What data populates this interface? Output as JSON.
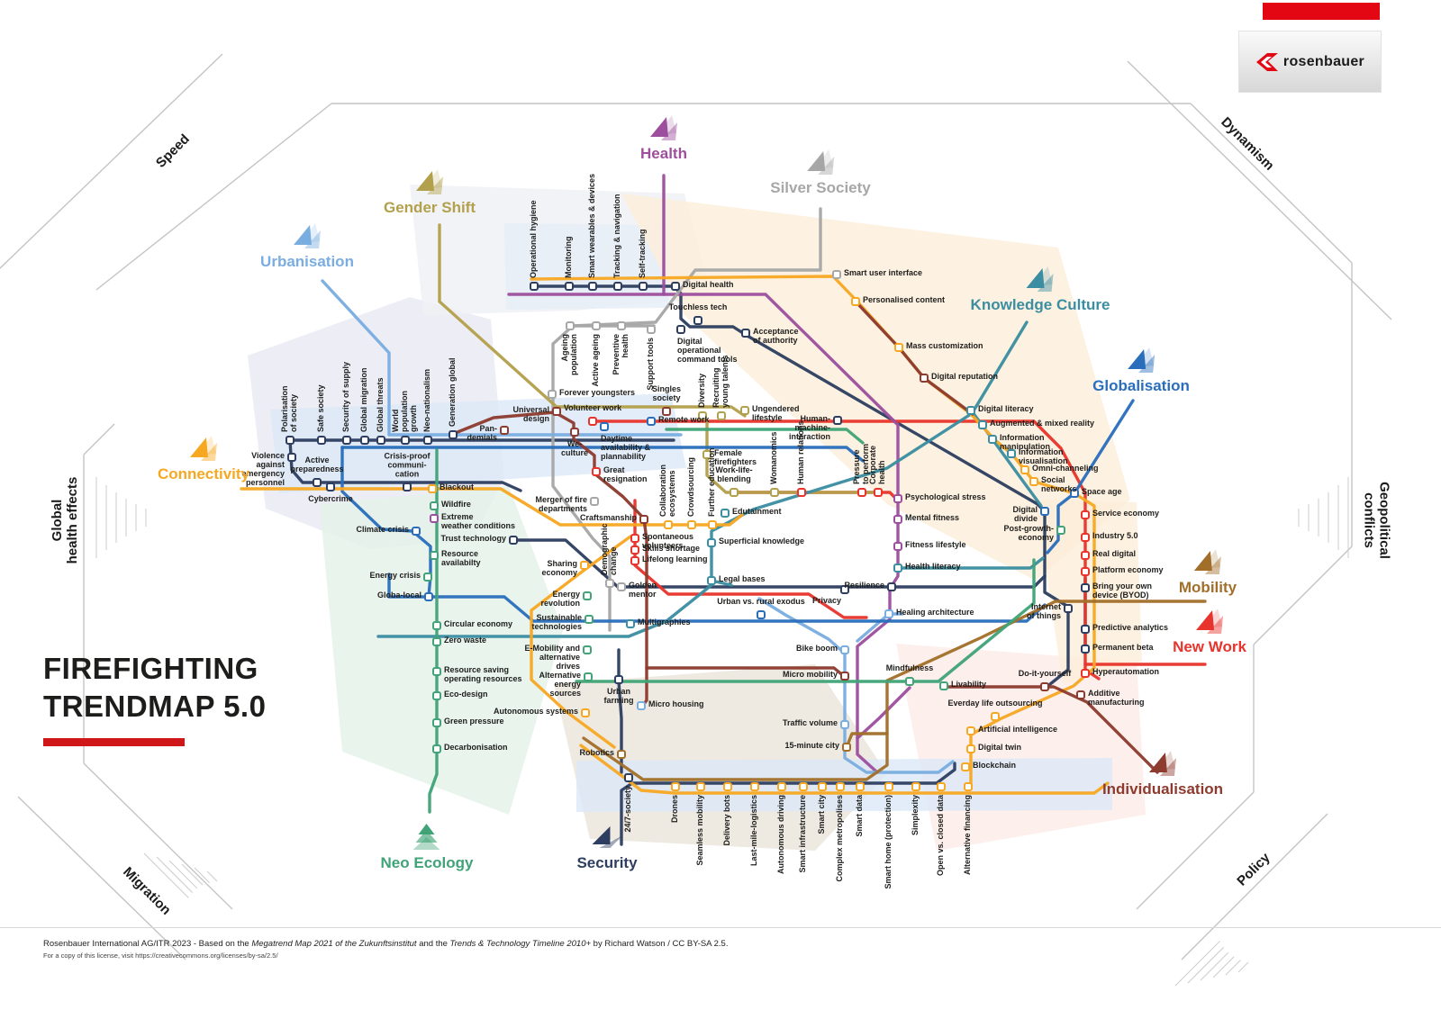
{
  "brand": {
    "logo_text": "rosenbauer",
    "bar_color": "#e30613"
  },
  "title": {
    "line1": "FIREFIGHTING",
    "line2": "TRENDMAP 5.0",
    "accent_color": "#cf1719"
  },
  "footer": {
    "p1": "Rosenbauer International AG/ITR 2023 - Based on the ",
    "p2": "Megatrend Map 2021 of the Zukunftsinstitut",
    "p3": " and the ",
    "p4": "Trends & Technology Timeline 2010+",
    "p5": " by Richard Watson / CC BY-SA 2.5.",
    "line2": "For a copy of this license, visit https://creativecommons.org/licenses/by-sa/2.5/"
  },
  "corner_labels": [
    {
      "id": "speed",
      "label": "Speed"
    },
    {
      "id": "dynamism",
      "label": "Dynamism"
    },
    {
      "id": "migration",
      "label": "Migration"
    },
    {
      "id": "policy",
      "label": "Policy"
    },
    {
      "id": "global-health-effects",
      "label": "Global\nhealth effects"
    },
    {
      "id": "geopolitical-conflicts",
      "label": "Geopolitical\nconflicts"
    }
  ],
  "megatrends": [
    {
      "id": "he",
      "label": "Health",
      "color": "#9d4f9e"
    },
    {
      "id": "si",
      "label": "Silver Society",
      "color": "#a7a7a7"
    },
    {
      "id": "ge",
      "label": "Gender Shift",
      "color": "#b3a04c"
    },
    {
      "id": "ur",
      "label": "Urbanisation",
      "color": "#7aade0"
    },
    {
      "id": "kn",
      "label": "Knowledge Culture",
      "color": "#3b8ea1"
    },
    {
      "id": "gl",
      "label": "Globalisation",
      "color": "#2a6ebb"
    },
    {
      "id": "co",
      "label": "Connectivity",
      "color": "#f7a823"
    },
    {
      "id": "mo",
      "label": "Mobility",
      "color": "#a26f2a"
    },
    {
      "id": "nw",
      "label": "New Work",
      "color": "#e8342c"
    },
    {
      "id": "in",
      "label": "Individualisation",
      "color": "#8e3b2f"
    },
    {
      "id": "ne",
      "label": "Neo Ecology",
      "color": "#41a377"
    },
    {
      "id": "sc",
      "label": "Security",
      "color": "#2e3e60"
    }
  ],
  "map": {
    "stations": [
      [
        "Operational hygiene",
        593,
        318,
        "v",
        "sc"
      ],
      [
        "Monitoring",
        632,
        318,
        "v",
        "sc"
      ],
      [
        "Smart wearables & devices",
        658,
        318,
        "v",
        "sc"
      ],
      [
        "Tracking & navigation",
        686,
        318,
        "v",
        "sc"
      ],
      [
        "Self-tracking",
        714,
        318,
        "v",
        "sc"
      ],
      [
        "Digital health",
        750,
        318,
        "e",
        "sc"
      ],
      [
        "Touchless tech",
        775,
        356,
        "n",
        "sc"
      ],
      [
        "Digital\noperational\ncommand tools",
        756,
        366,
        "se",
        "sc"
      ],
      [
        "Acceptance\nof authority",
        828,
        370,
        "e",
        "sc"
      ],
      [
        "Smart user interface",
        929,
        305,
        "e",
        "si"
      ],
      [
        "Personalised content",
        950,
        335,
        "e",
        "co"
      ],
      [
        "Mass customization",
        998,
        386,
        "e",
        "co"
      ],
      [
        "Digital reputation",
        1026,
        420,
        "e",
        "in"
      ],
      [
        "Ageing\npopulation",
        633,
        362,
        "vb",
        "si"
      ],
      [
        "Active ageing",
        662,
        362,
        "vb",
        "si"
      ],
      [
        "Preventive\nhealth",
        690,
        362,
        "vb",
        "si"
      ],
      [
        "Support tools",
        723,
        366,
        "vb",
        "si"
      ],
      [
        "Forever youngsters",
        613,
        438,
        "e",
        "si"
      ],
      [
        "Singles\nsociety",
        740,
        457,
        "n",
        "in"
      ],
      [
        "Diversity",
        780,
        462,
        "v",
        "ge"
      ],
      [
        "Recruiting\nyoung talents",
        801,
        462,
        "v",
        "ge"
      ],
      [
        "Ungendered\nlifestyle",
        827,
        456,
        "e",
        "ge"
      ],
      [
        "Human-\nmachine-\ninteraction",
        930,
        467,
        "w",
        "sc"
      ],
      [
        "Universal\ndesign",
        618,
        457,
        "w",
        "in"
      ],
      [
        "Volunteer work",
        658,
        468,
        "n",
        "nw"
      ],
      [
        "We-\nculture",
        638,
        480,
        "s",
        "in"
      ],
      [
        "Daytime\navailability &\nplannability",
        671,
        474,
        "se",
        "gl"
      ],
      [
        "Remote work",
        723,
        468,
        "e",
        "gl"
      ],
      [
        "Great\nresignation",
        662,
        524,
        "e",
        "nw"
      ],
      [
        "Merger of fire\ndepartments",
        660,
        557,
        "w",
        "si"
      ],
      [
        "Craftsmanship",
        715,
        577,
        "w",
        "in"
      ],
      [
        "Collaboration\necosystems",
        742,
        583,
        "v",
        "co"
      ],
      [
        "Crowdsourcing",
        768,
        583,
        "v",
        "co"
      ],
      [
        "Further education",
        791,
        583,
        "v",
        "co"
      ],
      [
        "Female\nfirefighters",
        785,
        505,
        "e",
        "ge"
      ],
      [
        "Work-life-\nblending",
        815,
        547,
        "n",
        "ge"
      ],
      [
        "Womanomics",
        860,
        547,
        "v",
        "ge"
      ],
      [
        "Human relations",
        890,
        547,
        "v",
        "nw"
      ],
      [
        "Edutainment",
        805,
        570,
        "e",
        "kn"
      ],
      [
        "Pressure\nto perform",
        957,
        547,
        "v",
        "nw"
      ],
      [
        "Corporate\nhealth",
        975,
        547,
        "v",
        "nw"
      ],
      [
        "Psychological stress",
        997,
        554,
        "e",
        "he"
      ],
      [
        "Mental fitness",
        997,
        577,
        "e",
        "he"
      ],
      [
        "Fitness lifestyle",
        997,
        607,
        "e",
        "he"
      ],
      [
        "Health literacy",
        997,
        631,
        "e",
        "kn"
      ],
      [
        "Resilience",
        990,
        652,
        "w",
        "sc"
      ],
      [
        "Privacy",
        938,
        655,
        "sw",
        "sc"
      ],
      [
        "Healing architecture",
        987,
        682,
        "e",
        "ur"
      ],
      [
        "Urban vs. rural exodus",
        845,
        683,
        "n",
        "gl"
      ],
      [
        "Superficial knowledge",
        790,
        603,
        "e",
        "kn"
      ],
      [
        "Legal bases",
        790,
        645,
        "e",
        "kn"
      ],
      [
        "Spontaneous\nvolunteers",
        705,
        598,
        "e",
        "nw"
      ],
      [
        "Skills shortage",
        705,
        611,
        "e",
        "nw"
      ],
      [
        "Lifelong learning",
        705,
        623,
        "e",
        "nw"
      ],
      [
        "Golden\nmentor",
        690,
        652,
        "e",
        "si"
      ],
      [
        "Multigraphies",
        700,
        693,
        "e",
        "kn"
      ],
      [
        "Sharing\neconomy",
        649,
        628,
        "w",
        "co"
      ],
      [
        "Energy\nrevolution",
        652,
        662,
        "w",
        "ne"
      ],
      [
        "Demographic\nchange",
        677,
        648,
        "v",
        "si"
      ],
      [
        "Sustainable\ntechnologies",
        654,
        688,
        "w",
        "ne"
      ],
      [
        "E-Mobility and\nalternative\ndrives",
        652,
        722,
        "w",
        "ne"
      ],
      [
        "Alternative\nenergy\nsources",
        653,
        752,
        "w",
        "ne"
      ],
      [
        "Urban\nfarming",
        687,
        755,
        "s",
        "sc"
      ],
      [
        "Autonomous systems",
        650,
        792,
        "w",
        "co"
      ],
      [
        "Robotics",
        690,
        838,
        "w",
        "mo"
      ],
      [
        "Micro housing",
        712,
        784,
        "e",
        "ur"
      ],
      [
        "24/7-society",
        698,
        864,
        "vb",
        "sc"
      ],
      [
        "Drones",
        750,
        874,
        "vb",
        "co"
      ],
      [
        "Seamless mobility",
        778,
        874,
        "vb",
        "co"
      ],
      [
        "Delivery bots",
        808,
        874,
        "vb",
        "co"
      ],
      [
        "Last-mile-logistics",
        838,
        874,
        "vb",
        "co"
      ],
      [
        "Autonomous driving",
        868,
        874,
        "vb",
        "co"
      ],
      [
        "Smart infrastructure",
        892,
        874,
        "vb",
        "co"
      ],
      [
        "Smart city",
        913,
        874,
        "vb",
        "co"
      ],
      [
        "Complex metropolises",
        933,
        874,
        "vb",
        "co"
      ],
      [
        "Smart data",
        955,
        874,
        "vb",
        "co"
      ],
      [
        "Smart home (protection)",
        987,
        874,
        "vb",
        "co"
      ],
      [
        "Simplexity",
        1017,
        874,
        "vb",
        "co"
      ],
      [
        "Open vs. closed data",
        1045,
        874,
        "vb",
        "co"
      ],
      [
        "Alternative financing",
        1075,
        874,
        "vb",
        "co"
      ],
      [
        "Bike boom",
        938,
        722,
        "w",
        "ur"
      ],
      [
        "Micro mobility",
        938,
        751,
        "w",
        "in"
      ],
      [
        "Traffic volume",
        938,
        805,
        "w",
        "ur"
      ],
      [
        "15-minute city",
        940,
        830,
        "w",
        "mo"
      ],
      [
        "Mindfulness",
        1010,
        757,
        "n",
        "ne"
      ],
      [
        "Livability",
        1048,
        762,
        "e",
        "ne"
      ],
      [
        "Do-it-yourself",
        1160,
        763,
        "n",
        "in"
      ],
      [
        "Everday life outsourcing",
        1105,
        796,
        "n",
        "co"
      ],
      [
        "Artificial intelligence",
        1078,
        812,
        "e",
        "co"
      ],
      [
        "Digital twin",
        1078,
        832,
        "e",
        "co"
      ],
      [
        "Blockchain",
        1072,
        852,
        "e",
        "co"
      ],
      [
        "Space age",
        1193,
        548,
        "e",
        "gl"
      ],
      [
        "Service economy",
        1205,
        572,
        "e",
        "nw"
      ],
      [
        "Industry 5.0",
        1205,
        597,
        "e",
        "nw"
      ],
      [
        "Real digital",
        1205,
        617,
        "e",
        "nw"
      ],
      [
        "Platform economy",
        1205,
        635,
        "e",
        "nw"
      ],
      [
        "Bring your own\ndevice (BYOD)",
        1205,
        653,
        "e",
        "sc"
      ],
      [
        "Internet\nof things",
        1186,
        676,
        "w",
        "sc"
      ],
      [
        "Predictive analytics",
        1205,
        699,
        "e",
        "sc"
      ],
      [
        "Permanent beta",
        1205,
        721,
        "e",
        "sc"
      ],
      [
        "Hyperautomation",
        1205,
        748,
        "e",
        "nw"
      ],
      [
        "Additive\nmanufacturing",
        1200,
        772,
        "e",
        "in"
      ],
      [
        "Digital literacy",
        1078,
        456,
        "e",
        "kn"
      ],
      [
        "Augmented & mixed reality",
        1091,
        472,
        "e",
        "kn"
      ],
      [
        "Information\nmanipulation",
        1102,
        488,
        "e",
        "kn"
      ],
      [
        "Information\nvisualisation",
        1123,
        504,
        "e",
        "kn"
      ],
      [
        "Omni-channeling",
        1138,
        522,
        "e",
        "co"
      ],
      [
        "Social\nnetworks",
        1148,
        535,
        "e",
        "co"
      ],
      [
        "Digital\ndivide",
        1160,
        568,
        "w",
        "gl"
      ],
      [
        "Post-growth-\neconomy",
        1178,
        589,
        "w",
        "ne"
      ],
      [
        "Polarisation\nof society",
        322,
        489,
        "v",
        "sc"
      ],
      [
        "Safe society",
        357,
        489,
        "v",
        "sc"
      ],
      [
        "Security of supply",
        385,
        489,
        "v",
        "sc"
      ],
      [
        "Global migration",
        405,
        489,
        "v",
        "sc"
      ],
      [
        "Global threats",
        423,
        489,
        "v",
        "sc"
      ],
      [
        "World\npopulation\ngrowth",
        450,
        489,
        "v",
        "sc"
      ],
      [
        "Neo-nationalism",
        475,
        489,
        "v",
        "sc"
      ],
      [
        "Generation global",
        503,
        483,
        "v",
        "sc"
      ],
      [
        "Pan-\ndemials",
        560,
        478,
        "w",
        "in"
      ],
      [
        "Violence\nagainst\nemergency\npersonnel",
        324,
        508,
        "w",
        "sc"
      ],
      [
        "Active\npreparedness",
        352,
        536,
        "n",
        "sc"
      ],
      [
        "Cybercrime",
        367,
        541,
        "s",
        "sc"
      ],
      [
        "Crisis-proof\ncommuni-\ncation",
        452,
        541,
        "n",
        "sc"
      ],
      [
        "Blackout",
        480,
        543,
        "e",
        "co"
      ],
      [
        "Wildfire",
        482,
        562,
        "e",
        "ne"
      ],
      [
        "Extreme\nweather conditions",
        482,
        576,
        "e",
        "he"
      ],
      [
        "Climate crisis",
        462,
        590,
        "w",
        "gl"
      ],
      [
        "Trust technology",
        570,
        600,
        "w",
        "sc"
      ],
      [
        "Resource\navailabilty",
        482,
        617,
        "e",
        "ne"
      ],
      [
        "Energy crisis",
        475,
        641,
        "w",
        "ne"
      ],
      [
        "Globa-local",
        476,
        663,
        "w",
        "gl"
      ],
      [
        "Circular economy",
        485,
        695,
        "e",
        "ne"
      ],
      [
        "Zero waste",
        485,
        713,
        "e",
        "ne"
      ],
      [
        "Resource saving\noperating resources",
        485,
        746,
        "e",
        "ne"
      ],
      [
        "Eco-design",
        485,
        773,
        "e",
        "ne"
      ],
      [
        "Green pressure",
        485,
        803,
        "e",
        "ne"
      ],
      [
        "Decarbonisation",
        485,
        832,
        "e",
        "ne"
      ]
    ]
  }
}
